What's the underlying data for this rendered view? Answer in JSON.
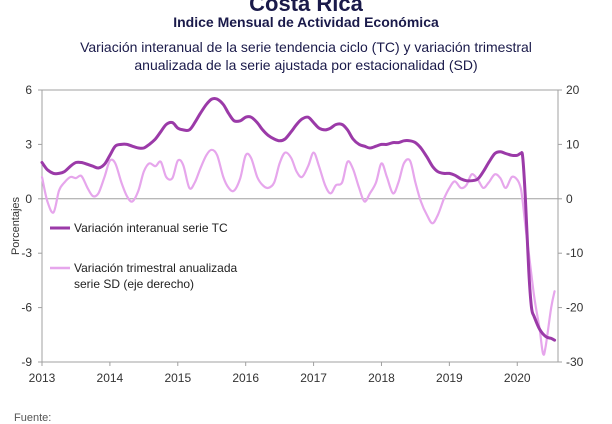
{
  "title": "Costa Rica",
  "subtitle": "Indice Mensual de  Actividad Económica",
  "description_line1": "Variación interanual de la serie tendencia ciclo (TC) y variación trimestral",
  "description_line2": "anualizada de la serie ajustada por estacionalidad (SD)",
  "source_label": "Fuente:",
  "chart_data": {
    "type": "line",
    "ylabel": "Porcentajes",
    "y_left_ticks": [
      "6",
      "3",
      "0",
      "-3",
      "-6",
      "-9"
    ],
    "y_right_ticks": [
      "20",
      "10",
      "0",
      "-10",
      "-20",
      "-30"
    ],
    "x_ticks": [
      "2013",
      "2014",
      "2015",
      "2016",
      "2017",
      "2018",
      "2019",
      "2020"
    ],
    "ylim_left": [
      -9,
      6
    ],
    "ylim_right": [
      -30,
      20
    ],
    "xlim": [
      2013,
      2020.6
    ],
    "grid": false,
    "legend_position": "left-middle",
    "colors": {
      "tc": "#9b3aa8",
      "sd": "#e6a6ec"
    },
    "series": [
      {
        "key": "tc",
        "name": "Variación interanual serie TC",
        "axis": "left",
        "points": [
          [
            2013.0,
            2.0
          ],
          [
            2013.08,
            1.6
          ],
          [
            2013.17,
            1.4
          ],
          [
            2013.25,
            1.4
          ],
          [
            2013.33,
            1.5
          ],
          [
            2013.42,
            1.8
          ],
          [
            2013.5,
            2.0
          ],
          [
            2013.58,
            2.0
          ],
          [
            2013.67,
            1.9
          ],
          [
            2013.75,
            1.8
          ],
          [
            2013.83,
            1.7
          ],
          [
            2013.92,
            1.9
          ],
          [
            2014.0,
            2.4
          ],
          [
            2014.08,
            2.9
          ],
          [
            2014.17,
            3.0
          ],
          [
            2014.25,
            3.0
          ],
          [
            2014.33,
            2.9
          ],
          [
            2014.42,
            2.8
          ],
          [
            2014.5,
            2.8
          ],
          [
            2014.58,
            3.0
          ],
          [
            2014.67,
            3.3
          ],
          [
            2014.75,
            3.7
          ],
          [
            2014.83,
            4.1
          ],
          [
            2014.92,
            4.2
          ],
          [
            2015.0,
            3.9
          ],
          [
            2015.08,
            3.8
          ],
          [
            2015.17,
            3.8
          ],
          [
            2015.25,
            4.2
          ],
          [
            2015.33,
            4.7
          ],
          [
            2015.42,
            5.2
          ],
          [
            2015.5,
            5.5
          ],
          [
            2015.58,
            5.5
          ],
          [
            2015.67,
            5.2
          ],
          [
            2015.75,
            4.7
          ],
          [
            2015.83,
            4.3
          ],
          [
            2015.92,
            4.3
          ],
          [
            2016.0,
            4.5
          ],
          [
            2016.08,
            4.5
          ],
          [
            2016.17,
            4.2
          ],
          [
            2016.25,
            3.8
          ],
          [
            2016.33,
            3.5
          ],
          [
            2016.42,
            3.3
          ],
          [
            2016.5,
            3.2
          ],
          [
            2016.58,
            3.3
          ],
          [
            2016.67,
            3.7
          ],
          [
            2016.75,
            4.1
          ],
          [
            2016.83,
            4.4
          ],
          [
            2016.92,
            4.5
          ],
          [
            2017.0,
            4.2
          ],
          [
            2017.08,
            3.9
          ],
          [
            2017.17,
            3.8
          ],
          [
            2017.25,
            3.9
          ],
          [
            2017.33,
            4.1
          ],
          [
            2017.42,
            4.1
          ],
          [
            2017.5,
            3.8
          ],
          [
            2017.58,
            3.3
          ],
          [
            2017.67,
            3.0
          ],
          [
            2017.75,
            2.9
          ],
          [
            2017.83,
            2.8
          ],
          [
            2017.92,
            2.9
          ],
          [
            2018.0,
            3.0
          ],
          [
            2018.08,
            3.0
          ],
          [
            2018.17,
            3.1
          ],
          [
            2018.25,
            3.1
          ],
          [
            2018.33,
            3.2
          ],
          [
            2018.42,
            3.2
          ],
          [
            2018.5,
            3.1
          ],
          [
            2018.58,
            2.8
          ],
          [
            2018.67,
            2.3
          ],
          [
            2018.75,
            1.8
          ],
          [
            2018.83,
            1.5
          ],
          [
            2018.92,
            1.4
          ],
          [
            2019.0,
            1.4
          ],
          [
            2019.08,
            1.3
          ],
          [
            2019.17,
            1.1
          ],
          [
            2019.25,
            1.0
          ],
          [
            2019.33,
            1.0
          ],
          [
            2019.42,
            1.1
          ],
          [
            2019.5,
            1.5
          ],
          [
            2019.58,
            2.0
          ],
          [
            2019.67,
            2.5
          ],
          [
            2019.75,
            2.6
          ],
          [
            2019.83,
            2.5
          ],
          [
            2019.92,
            2.4
          ],
          [
            2020.0,
            2.4
          ],
          [
            2020.05,
            2.5
          ],
          [
            2020.08,
            2.3
          ],
          [
            2020.12,
            0.0
          ],
          [
            2020.17,
            -4.0
          ],
          [
            2020.21,
            -6.0
          ],
          [
            2020.25,
            -6.5
          ],
          [
            2020.33,
            -7.2
          ],
          [
            2020.42,
            -7.6
          ],
          [
            2020.5,
            -7.7
          ],
          [
            2020.55,
            -7.8
          ]
        ]
      },
      {
        "key": "sd",
        "name": "Variación trimestral anualizada serie SD (eje derecho)",
        "axis": "right",
        "legend_lines": [
          "Variación trimestral anualizada",
          "serie SD (eje derecho)"
        ],
        "points": [
          [
            2013.0,
            4.0
          ],
          [
            2013.08,
            -0.5
          ],
          [
            2013.17,
            -2.5
          ],
          [
            2013.25,
            1.5
          ],
          [
            2013.33,
            3.0
          ],
          [
            2013.42,
            4.0
          ],
          [
            2013.5,
            3.8
          ],
          [
            2013.58,
            4.2
          ],
          [
            2013.67,
            2.0
          ],
          [
            2013.75,
            0.5
          ],
          [
            2013.83,
            1.0
          ],
          [
            2013.92,
            4.0
          ],
          [
            2014.0,
            7.0
          ],
          [
            2014.08,
            6.5
          ],
          [
            2014.17,
            3.0
          ],
          [
            2014.25,
            0.5
          ],
          [
            2014.33,
            -0.5
          ],
          [
            2014.42,
            1.5
          ],
          [
            2014.5,
            5.0
          ],
          [
            2014.58,
            6.5
          ],
          [
            2014.67,
            6.0
          ],
          [
            2014.75,
            6.8
          ],
          [
            2014.83,
            4.0
          ],
          [
            2014.92,
            3.8
          ],
          [
            2015.0,
            7.0
          ],
          [
            2015.08,
            6.2
          ],
          [
            2015.17,
            2.0
          ],
          [
            2015.25,
            3.0
          ],
          [
            2015.33,
            5.5
          ],
          [
            2015.42,
            8.0
          ],
          [
            2015.5,
            9.0
          ],
          [
            2015.58,
            8.0
          ],
          [
            2015.67,
            4.0
          ],
          [
            2015.75,
            2.0
          ],
          [
            2015.83,
            1.5
          ],
          [
            2015.92,
            3.8
          ],
          [
            2016.0,
            8.0
          ],
          [
            2016.08,
            7.5
          ],
          [
            2016.17,
            4.0
          ],
          [
            2016.25,
            2.5
          ],
          [
            2016.33,
            2.0
          ],
          [
            2016.42,
            3.0
          ],
          [
            2016.5,
            6.5
          ],
          [
            2016.58,
            8.5
          ],
          [
            2016.67,
            7.5
          ],
          [
            2016.75,
            5.0
          ],
          [
            2016.83,
            4.0
          ],
          [
            2016.92,
            6.0
          ],
          [
            2017.0,
            8.5
          ],
          [
            2017.08,
            6.0
          ],
          [
            2017.17,
            2.5
          ],
          [
            2017.25,
            1.0
          ],
          [
            2017.33,
            2.5
          ],
          [
            2017.42,
            3.0
          ],
          [
            2017.5,
            6.8
          ],
          [
            2017.58,
            5.5
          ],
          [
            2017.67,
            2.0
          ],
          [
            2017.75,
            -0.5
          ],
          [
            2017.83,
            1.0
          ],
          [
            2017.92,
            3.0
          ],
          [
            2018.0,
            6.5
          ],
          [
            2018.08,
            4.0
          ],
          [
            2018.17,
            1.0
          ],
          [
            2018.25,
            3.0
          ],
          [
            2018.33,
            6.5
          ],
          [
            2018.42,
            7.0
          ],
          [
            2018.5,
            3.0
          ],
          [
            2018.58,
            -0.5
          ],
          [
            2018.67,
            -3.0
          ],
          [
            2018.75,
            -4.5
          ],
          [
            2018.83,
            -3.0
          ],
          [
            2018.92,
            0.0
          ],
          [
            2019.0,
            2.0
          ],
          [
            2019.08,
            3.2
          ],
          [
            2019.17,
            2.0
          ],
          [
            2019.25,
            2.5
          ],
          [
            2019.33,
            4.5
          ],
          [
            2019.42,
            3.5
          ],
          [
            2019.5,
            2.0
          ],
          [
            2019.58,
            3.0
          ],
          [
            2019.67,
            4.5
          ],
          [
            2019.75,
            3.8
          ],
          [
            2019.83,
            2.0
          ],
          [
            2019.92,
            4.0
          ],
          [
            2020.0,
            3.5
          ],
          [
            2020.05,
            2.0
          ],
          [
            2020.08,
            -0.5
          ],
          [
            2020.12,
            -5.0
          ],
          [
            2020.17,
            -10.0
          ],
          [
            2020.25,
            -18.0
          ],
          [
            2020.33,
            -24.0
          ],
          [
            2020.38,
            -28.5
          ],
          [
            2020.42,
            -27.0
          ],
          [
            2020.5,
            -20.0
          ],
          [
            2020.55,
            -17.0
          ]
        ]
      }
    ]
  }
}
